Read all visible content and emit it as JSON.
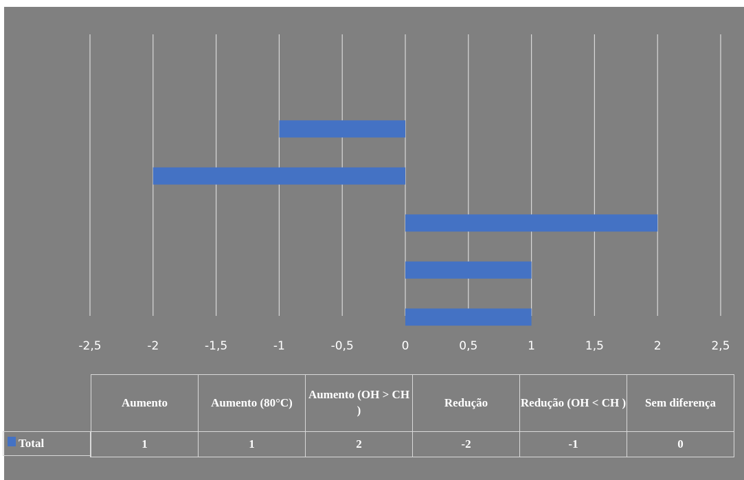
{
  "chart_data": {
    "type": "bar",
    "orientation": "horizontal",
    "categories": [
      "Aumento",
      "Aumento (80°C)",
      "Aumento (OH > CH )",
      "Redução",
      "Redução (OH < CH )",
      "Sem diferença"
    ],
    "series": [
      {
        "name": "Total",
        "values": [
          1,
          1,
          2,
          -2,
          -1,
          0
        ]
      }
    ],
    "xlim": [
      -2.5,
      2.5
    ],
    "x_ticks": [
      "-2,5",
      "-2",
      "-1,5",
      "-1",
      "-0,5",
      "0",
      "0,5",
      "1",
      "1,5",
      "2",
      "2,5"
    ],
    "grid": true,
    "legend": "data-table",
    "colors": {
      "series": "#4472c4",
      "background": "#808080",
      "grid": "#d9d9d9",
      "text": "#ffffff"
    }
  },
  "table": {
    "headers": [
      "Aumento",
      "Aumento (80°C)",
      "Aumento (OH > CH )",
      "Redução",
      "Redução (OH < CH )",
      "Sem diferença"
    ],
    "row_label": "Total",
    "values": [
      "1",
      "1",
      "2",
      "-2",
      "-1",
      "0"
    ]
  }
}
